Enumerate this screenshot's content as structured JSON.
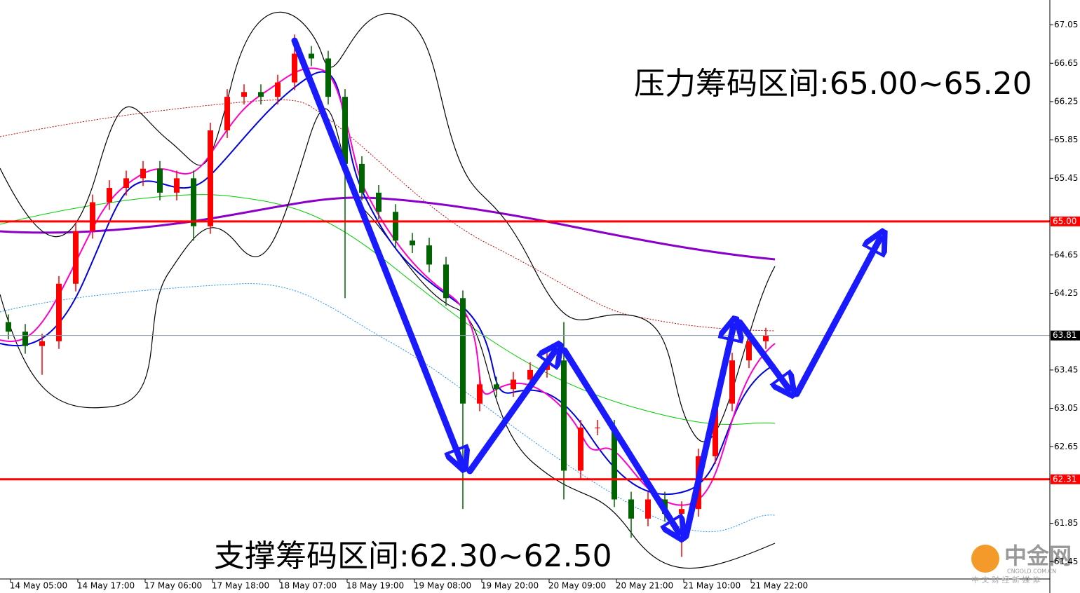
{
  "chart_data": {
    "type": "candlestick",
    "annotations": [
      "压力筹码区间:65.00~65.20",
      "支撑筹码区间:62.30~62.50"
    ],
    "x_labels": [
      "14 May 05:00",
      "14 May 17:00",
      "17 May 06:00",
      "17 May 18:00",
      "18 May 07:00",
      "18 May 19:00",
      "19 May 08:00",
      "19 May 20:00",
      "20 May 09:00",
      "20 May 21:00",
      "21 May 10:00",
      "21 May 22:00"
    ],
    "open": [
      63.95,
      63.85,
      63.7,
      63.75,
      64.35,
      64.9,
      65.2,
      65.35,
      65.45,
      65.55,
      65.3,
      65.45,
      64.95,
      65.95,
      66.3,
      66.35,
      66.3,
      66.45,
      66.75,
      66.7,
      66.3,
      65.6,
      65.3,
      65.1,
      64.8,
      64.75,
      64.55,
      64.2,
      63.1,
      63.3,
      63.25,
      63.35,
      63.45,
      63.55,
      62.4,
      62.85,
      62.85,
      62.1,
      61.9,
      62.1,
      61.95,
      62.0,
      62.55,
      63.1,
      63.55,
      63.75
    ],
    "high": [
      64.03,
      63.93,
      63.83,
      64.43,
      64.98,
      65.28,
      65.43,
      65.53,
      65.63,
      65.63,
      65.53,
      65.53,
      66.03,
      66.38,
      66.43,
      66.43,
      66.53,
      66.95,
      66.83,
      66.78,
      66.38,
      65.68,
      65.38,
      65.18,
      64.88,
      64.83,
      64.63,
      64.28,
      63.38,
      63.38,
      63.43,
      63.53,
      63.63,
      63.95,
      62.93,
      62.93,
      62.93,
      62.18,
      62.18,
      62.18,
      62.08,
      62.63,
      63.18,
      63.63,
      63.83,
      63.89
    ],
    "low": [
      63.77,
      63.62,
      63.4,
      63.67,
      64.27,
      64.82,
      65.12,
      65.27,
      65.37,
      65.22,
      65.22,
      64.8,
      64.87,
      65.87,
      66.22,
      66.22,
      66.22,
      66.37,
      66.62,
      66.22,
      64.2,
      65.22,
      65.02,
      64.72,
      64.67,
      64.47,
      64.12,
      62.0,
      63.02,
      63.17,
      63.17,
      63.27,
      63.37,
      62.1,
      62.32,
      62.77,
      62.02,
      61.7,
      61.82,
      61.87,
      61.5,
      61.92,
      62.47,
      63.02,
      63.47,
      63.67
    ],
    "close": [
      63.85,
      63.7,
      63.75,
      64.35,
      64.9,
      65.2,
      65.35,
      65.45,
      65.55,
      65.3,
      65.45,
      64.95,
      65.95,
      66.3,
      66.35,
      66.3,
      66.45,
      66.75,
      66.7,
      66.3,
      65.6,
      65.3,
      65.1,
      64.8,
      64.75,
      64.55,
      64.2,
      63.1,
      63.3,
      63.25,
      63.35,
      63.45,
      63.55,
      62.4,
      62.85,
      62.85,
      62.1,
      61.9,
      62.1,
      61.95,
      62.0,
      62.55,
      63.1,
      63.55,
      63.75,
      63.81
    ],
    "up_color": "#ff0000",
    "down_color": "#006400",
    "ylim": [
      61.27,
      67.31
    ],
    "yticks": [
      67.05,
      66.65,
      66.25,
      65.85,
      65.45,
      64.65,
      64.25,
      63.45,
      63.05,
      62.65,
      61.85,
      61.45
    ],
    "hlines": [
      {
        "value": 65,
        "label": "65.00",
        "color": "#ff0000"
      },
      {
        "value": 62.31,
        "label": "62.31",
        "color": "#ff0000"
      },
      {
        "value": 63.81,
        "label": "63.81",
        "color": "#8c9aa6"
      }
    ],
    "logo": [
      "中金网",
      "CNGOLD.COM.CN",
      "中 文 财 经 新 媒 体"
    ]
  }
}
